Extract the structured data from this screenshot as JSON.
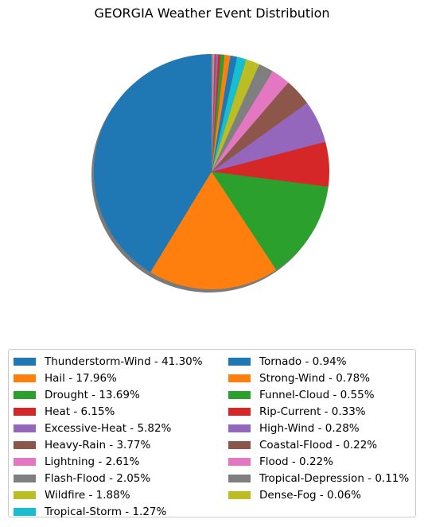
{
  "chart_data": {
    "type": "pie",
    "title": "GEORGIA Weather Event Distribution",
    "shadow": true,
    "start_angle_deg": 90,
    "direction": "counterclockwise",
    "legend_placement": "below",
    "legend_columns": 2,
    "slices": [
      {
        "label": "Thunderstorm-Wind",
        "value": 41.3,
        "legend": "Thunderstorm-Wind - 41.30%",
        "color": "#1f77b4"
      },
      {
        "label": "Hail",
        "value": 17.96,
        "legend": "Hail - 17.96%",
        "color": "#ff7f0e"
      },
      {
        "label": "Drought",
        "value": 13.69,
        "legend": "Drought - 13.69%",
        "color": "#2ca02c"
      },
      {
        "label": "Heat",
        "value": 6.15,
        "legend": "Heat - 6.15%",
        "color": "#d62728"
      },
      {
        "label": "Excessive-Heat",
        "value": 5.82,
        "legend": "Excessive-Heat - 5.82%",
        "color": "#9467bd"
      },
      {
        "label": "Heavy-Rain",
        "value": 3.77,
        "legend": "Heavy-Rain - 3.77%",
        "color": "#8c564b"
      },
      {
        "label": "Lightning",
        "value": 2.61,
        "legend": "Lightning - 2.61%",
        "color": "#e377c2"
      },
      {
        "label": "Flash-Flood",
        "value": 2.05,
        "legend": "Flash-Flood - 2.05%",
        "color": "#7f7f7f"
      },
      {
        "label": "Wildfire",
        "value": 1.88,
        "legend": "Wildfire - 1.88%",
        "color": "#bcbd22"
      },
      {
        "label": "Tropical-Storm",
        "value": 1.27,
        "legend": "Tropical-Storm - 1.27%",
        "color": "#17becf"
      },
      {
        "label": "Tornado",
        "value": 0.94,
        "legend": "Tornado - 0.94%",
        "color": "#1f77b4"
      },
      {
        "label": "Strong-Wind",
        "value": 0.78,
        "legend": "Strong-Wind - 0.78%",
        "color": "#ff7f0e"
      },
      {
        "label": "Funnel-Cloud",
        "value": 0.55,
        "legend": "Funnel-Cloud - 0.55%",
        "color": "#2ca02c"
      },
      {
        "label": "Rip-Current",
        "value": 0.33,
        "legend": "Rip-Current - 0.33%",
        "color": "#d62728"
      },
      {
        "label": "High-Wind",
        "value": 0.28,
        "legend": "High-Wind - 0.28%",
        "color": "#9467bd"
      },
      {
        "label": "Coastal-Flood",
        "value": 0.22,
        "legend": "Coastal-Flood - 0.22%",
        "color": "#8c564b"
      },
      {
        "label": "Flood",
        "value": 0.22,
        "legend": "Flood - 0.22%",
        "color": "#e377c2"
      },
      {
        "label": "Tropical-Depression",
        "value": 0.11,
        "legend": "Tropical-Depression - 0.11%",
        "color": "#7f7f7f"
      },
      {
        "label": "Dense-Fog",
        "value": 0.06,
        "legend": "Dense-Fog - 0.06%",
        "color": "#bcbd22"
      }
    ]
  }
}
